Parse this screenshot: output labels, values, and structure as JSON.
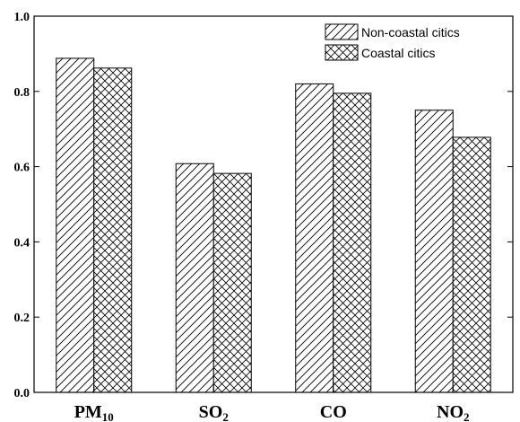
{
  "chart_data": {
    "type": "bar",
    "title": "",
    "xlabel": "",
    "ylabel": "",
    "ylim": [
      0,
      1.0
    ],
    "yticks": [
      0.0,
      0.2,
      0.4,
      0.6,
      0.8,
      1.0
    ],
    "ytick_labels": [
      "0.0",
      "0.2",
      "0.4",
      "0.6",
      "0.8",
      "1.0"
    ],
    "categories": [
      {
        "main": "PM",
        "sub": "10"
      },
      {
        "main": "SO",
        "sub": "2"
      },
      {
        "main": "CO",
        "sub": ""
      },
      {
        "main": "NO",
        "sub": "2"
      }
    ],
    "series": [
      {
        "name": "Non-coastal citics",
        "pattern": "diagonal-hatch",
        "values": [
          0.888,
          0.608,
          0.82,
          0.75
        ]
      },
      {
        "name": "Coastal citics",
        "pattern": "cross-hatch",
        "values": [
          0.862,
          0.582,
          0.795,
          0.678
        ]
      }
    ],
    "legend": {
      "position": "top-right"
    },
    "grid": false,
    "colors": {
      "stroke": "#000000",
      "fill": "#ffffff"
    }
  }
}
